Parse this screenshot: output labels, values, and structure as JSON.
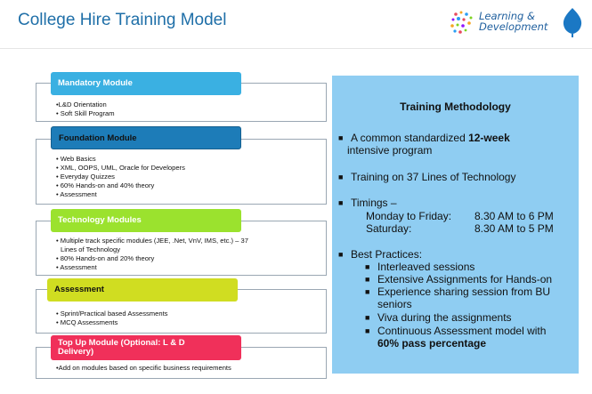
{
  "title": "College Hire Training Model",
  "logo": {
    "line1": "Learning &",
    "line2": "Development"
  },
  "modules": [
    {
      "header": "Mandatory Module",
      "items": [
        "•L&D Orientation",
        "• Soft Skill Program"
      ]
    },
    {
      "header": "Foundation Module",
      "items": [
        "• Web Basics",
        "• XML, OOPS, UML, Oracle for Developers",
        "• Everyday Quizzes",
        "• 60% Hands-on and 40% theory",
        "• Assessment"
      ]
    },
    {
      "header": "Technology Modules",
      "items": [
        "• Multiple track specific modules (JEE, .Net, VnV, IMS, etc.) – 37",
        "Lines of Technology",
        "• 80% Hands-on and 20% theory",
        "• Assessment"
      ]
    },
    {
      "header": "Assessment",
      "items": [
        "• Sprint/Practical based Assessments",
        "• MCQ Assessments"
      ]
    },
    {
      "header": "Top Up Module (Optional: L & D",
      "header2": "Delivery)",
      "items": [
        "•Add on modules based on specific business requirements"
      ]
    }
  ],
  "methodology": {
    "title": "Training Methodology",
    "b1_pre": "A common standardized ",
    "b1_bold": "12-week",
    "b1_line2": "intensive program",
    "b2": "Training on 37 Lines of Technology",
    "b3": "Timings –",
    "t1_label": "Monday to Friday:",
    "t1_value": "8.30 AM to 6 PM",
    "t2_label": "Saturday:",
    "t2_value": "8.30 AM to 5 PM",
    "b4": "Best Practices:",
    "practices": [
      "Interleaved sessions",
      "Extensive Assignments for Hands-on",
      "Experience sharing session from BU",
      "seniors",
      "Viva during the assignments",
      "Continuous Assessment model with"
    ],
    "last_bold": "60% pass percentage"
  },
  "colors": {
    "title": "#1f6fa8",
    "mandatory": "#3ab0e2",
    "foundation": "#1d7cb8",
    "technology": "#9be22e",
    "assessment": "#d0dd21",
    "topup": "#f0305a",
    "panel": "#8fcdf2"
  }
}
